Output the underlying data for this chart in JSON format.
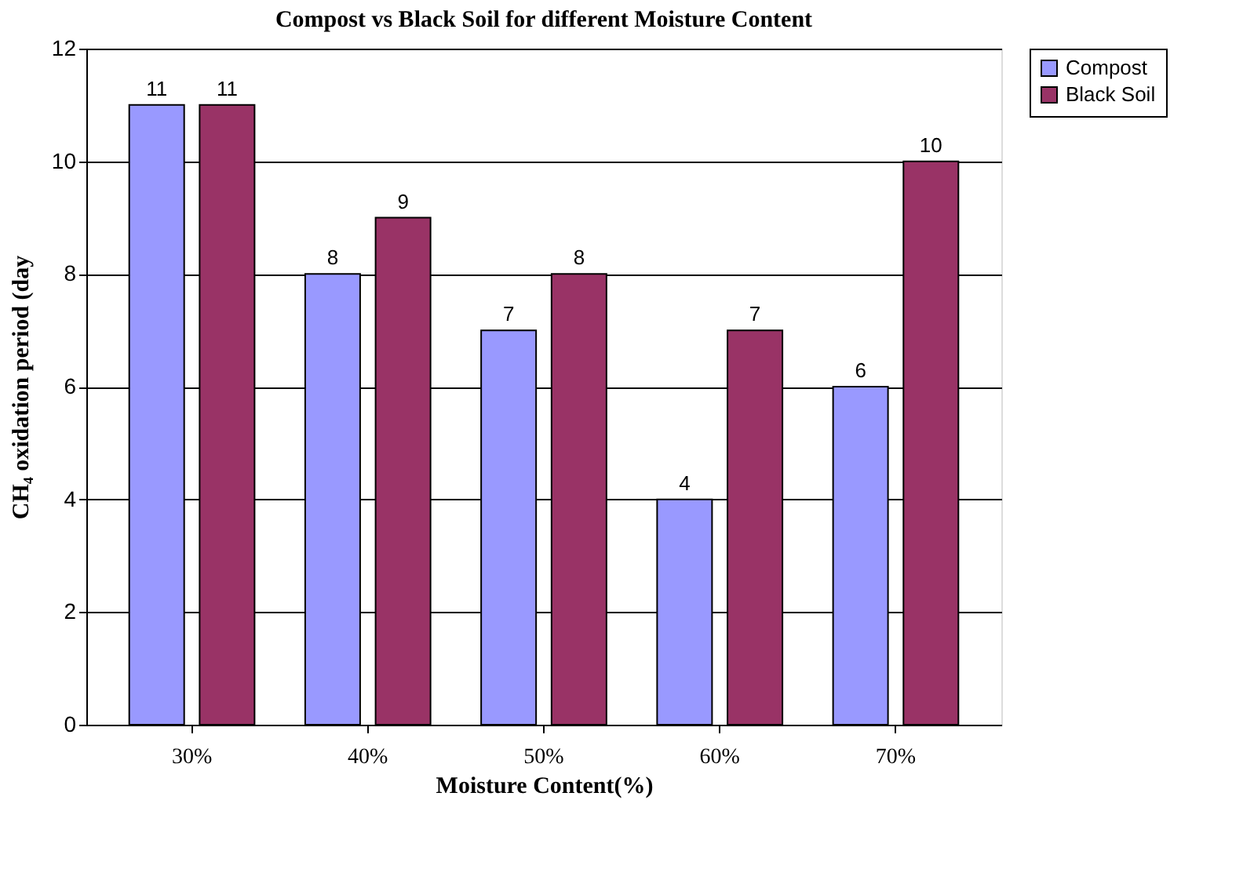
{
  "chart_data": {
    "type": "bar",
    "title": "Compost vs Black Soil for different Moisture Content",
    "xlabel": "Moisture Content(%)",
    "ylabel": "CH₄ oxidation period (day",
    "categories": [
      "30%",
      "40%",
      "50%",
      "60%",
      "70%"
    ],
    "series": [
      {
        "name": "Compost",
        "color": "#9999ff",
        "values": [
          11,
          8,
          7,
          4,
          6
        ]
      },
      {
        "name": "Black Soil",
        "color": "#993366",
        "values": [
          11,
          9,
          8,
          7,
          10
        ]
      }
    ],
    "ylim": [
      0,
      12
    ],
    "yticks": [
      0,
      2,
      4,
      6,
      8,
      10,
      12
    ],
    "grid": "y",
    "legend": "right",
    "data_labels": true
  }
}
